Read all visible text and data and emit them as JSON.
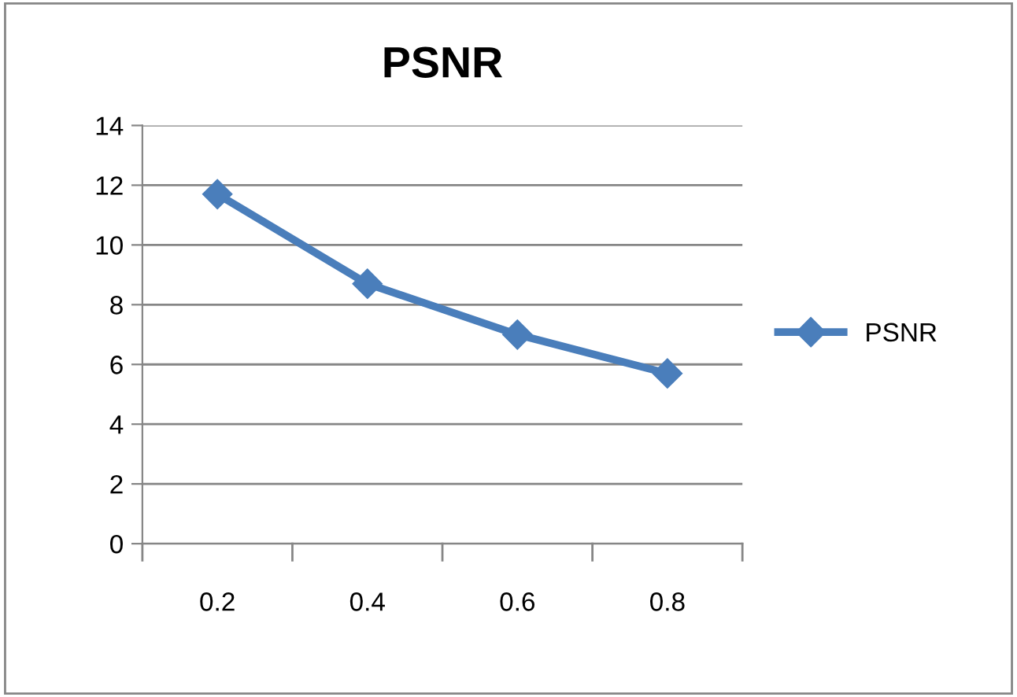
{
  "chart_data": {
    "type": "line",
    "title": "PSNR",
    "categories": [
      "0.2",
      "0.4",
      "0.6",
      "0.8"
    ],
    "series": [
      {
        "name": "PSNR",
        "color": "#4a7ebb",
        "values": [
          11.7,
          8.7,
          7.0,
          5.7
        ]
      }
    ],
    "ylim": [
      0,
      14
    ],
    "yticks": [
      0,
      2,
      4,
      6,
      8,
      10,
      12,
      14
    ],
    "grid": "y",
    "legend": "right",
    "marker": "diamond",
    "line_style": "solid"
  }
}
